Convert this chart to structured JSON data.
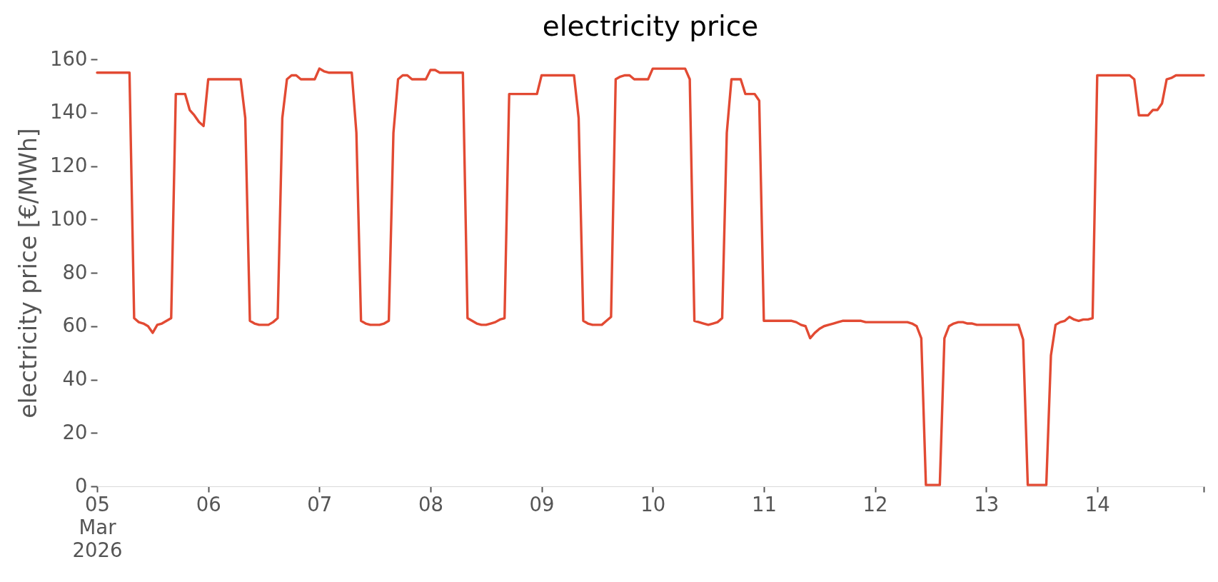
{
  "chart_data": {
    "type": "line",
    "title": "electricity price",
    "ylabel": "electricity price [€/MWh]",
    "x": [
      "2026-03-05T00:00",
      "2026-03-05T07:00",
      "2026-03-05T08:00",
      "2026-03-05T09:00",
      "2026-03-05T10:00",
      "2026-03-05T11:00",
      "2026-03-05T12:00",
      "2026-03-05T13:00",
      "2026-03-05T14:00",
      "2026-03-05T15:00",
      "2026-03-05T16:00",
      "2026-03-05T17:00",
      "2026-03-05T19:00",
      "2026-03-05T20:00",
      "2026-03-05T21:00",
      "2026-03-05T22:00",
      "2026-03-05T23:00",
      "2026-03-06T00:00",
      "2026-03-06T07:00",
      "2026-03-06T08:00",
      "2026-03-06T09:00",
      "2026-03-06T10:00",
      "2026-03-06T11:00",
      "2026-03-06T13:00",
      "2026-03-06T14:00",
      "2026-03-06T15:00",
      "2026-03-06T16:00",
      "2026-03-06T17:00",
      "2026-03-06T18:00",
      "2026-03-06T19:00",
      "2026-03-06T20:00",
      "2026-03-06T23:00",
      "2026-03-07T00:00",
      "2026-03-07T01:00",
      "2026-03-07T02:00",
      "2026-03-07T07:00",
      "2026-03-07T08:00",
      "2026-03-07T09:00",
      "2026-03-07T10:00",
      "2026-03-07T11:00",
      "2026-03-07T13:00",
      "2026-03-07T14:00",
      "2026-03-07T15:00",
      "2026-03-07T16:00",
      "2026-03-07T17:00",
      "2026-03-07T18:00",
      "2026-03-07T19:00",
      "2026-03-07T20:00",
      "2026-03-07T23:00",
      "2026-03-08T00:00",
      "2026-03-08T01:00",
      "2026-03-08T02:00",
      "2026-03-08T07:00",
      "2026-03-08T08:00",
      "2026-03-08T09:00",
      "2026-03-08T10:00",
      "2026-03-08T11:00",
      "2026-03-08T12:00",
      "2026-03-08T13:00",
      "2026-03-08T14:00",
      "2026-03-08T15:00",
      "2026-03-08T16:00",
      "2026-03-08T17:00",
      "2026-03-08T23:00",
      "2026-03-09T00:00",
      "2026-03-09T07:00",
      "2026-03-09T08:00",
      "2026-03-09T09:00",
      "2026-03-09T10:00",
      "2026-03-09T11:00",
      "2026-03-09T13:00",
      "2026-03-09T14:00",
      "2026-03-09T15:00",
      "2026-03-09T16:00",
      "2026-03-09T17:00",
      "2026-03-09T18:00",
      "2026-03-09T19:00",
      "2026-03-09T20:00",
      "2026-03-09T23:00",
      "2026-03-10T00:00",
      "2026-03-10T07:00",
      "2026-03-10T08:00",
      "2026-03-10T09:00",
      "2026-03-10T10:00",
      "2026-03-10T11:00",
      "2026-03-10T12:00",
      "2026-03-10T13:00",
      "2026-03-10T14:00",
      "2026-03-10T15:00",
      "2026-03-10T16:00",
      "2026-03-10T17:00",
      "2026-03-10T19:00",
      "2026-03-10T20:00",
      "2026-03-10T22:00",
      "2026-03-10T23:00",
      "2026-03-11T00:00",
      "2026-03-11T06:00",
      "2026-03-11T07:00",
      "2026-03-11T08:00",
      "2026-03-11T09:00",
      "2026-03-11T10:00",
      "2026-03-11T11:00",
      "2026-03-11T12:00",
      "2026-03-11T13:00",
      "2026-03-11T14:00",
      "2026-03-11T15:00",
      "2026-03-11T16:00",
      "2026-03-11T17:00",
      "2026-03-11T21:00",
      "2026-03-11T22:00",
      "2026-03-12T07:00",
      "2026-03-12T08:00",
      "2026-03-12T09:00",
      "2026-03-12T10:00",
      "2026-03-12T11:00",
      "2026-03-12T14:00",
      "2026-03-12T15:00",
      "2026-03-12T16:00",
      "2026-03-12T17:00",
      "2026-03-12T18:00",
      "2026-03-12T19:00",
      "2026-03-12T20:00",
      "2026-03-12T21:00",
      "2026-03-12T22:00",
      "2026-03-13T07:00",
      "2026-03-13T08:00",
      "2026-03-13T09:00",
      "2026-03-13T13:00",
      "2026-03-13T14:00",
      "2026-03-13T15:00",
      "2026-03-13T16:00",
      "2026-03-13T17:00",
      "2026-03-13T18:00",
      "2026-03-13T19:00",
      "2026-03-13T20:00",
      "2026-03-13T21:00",
      "2026-03-13T22:00",
      "2026-03-13T23:00",
      "2026-03-14T00:00",
      "2026-03-14T07:00",
      "2026-03-14T08:00",
      "2026-03-14T09:00",
      "2026-03-14T11:00",
      "2026-03-14T12:00",
      "2026-03-14T13:00",
      "2026-03-14T14:00",
      "2026-03-14T15:00",
      "2026-03-14T16:00",
      "2026-03-14T17:00",
      "2026-03-14T23:00"
    ],
    "series": [
      {
        "color": "#e24a33",
        "values": [
          155,
          155,
          63,
          61.5,
          61,
          60,
          57.5,
          60.5,
          61,
          62,
          63,
          147,
          147,
          141,
          139,
          136.5,
          135,
          152.5,
          152.5,
          138,
          62,
          61,
          60.5,
          60.5,
          61.5,
          63,
          138,
          152.5,
          154,
          154,
          152.5,
          152.5,
          156.5,
          155.5,
          155,
          155,
          132.5,
          62,
          61,
          60.5,
          60.5,
          61,
          62,
          132.5,
          152.5,
          154,
          154,
          152.5,
          152.5,
          156,
          156,
          155,
          155,
          63,
          62,
          61,
          60.5,
          60.5,
          61,
          61.5,
          62.5,
          63,
          147,
          147,
          154,
          154,
          138,
          62,
          61,
          60.5,
          60.5,
          62,
          63.5,
          152.5,
          153.5,
          154,
          154,
          152.5,
          152.5,
          156.5,
          156.5,
          152.5,
          62,
          61.5,
          61,
          60.5,
          61,
          61.5,
          63,
          132.5,
          152.5,
          152.5,
          147,
          147,
          144.5,
          62,
          62,
          61.5,
          60.5,
          60,
          55.5,
          57.5,
          59,
          60,
          60.5,
          61,
          61.5,
          62,
          62,
          61.5,
          61.5,
          61,
          60,
          55.5,
          0.5,
          0.5,
          55.5,
          60,
          61,
          61.5,
          61.5,
          61,
          61,
          60.5,
          60.5,
          55,
          0.5,
          0.5,
          49,
          60.5,
          61.5,
          62,
          63.5,
          62.5,
          62,
          62.5,
          62.5,
          63,
          154,
          154,
          152.5,
          139,
          139,
          141,
          141,
          143.5,
          152.5,
          153,
          154,
          154
        ]
      }
    ],
    "xlim": [
      "2026-03-05T00:00",
      "2026-03-14T23:00"
    ],
    "xticks": [
      {
        "value": "2026-03-05T00:00",
        "label": "05\nMar\n2026"
      },
      {
        "value": "2026-03-06T00:00",
        "label": "06"
      },
      {
        "value": "2026-03-07T00:00",
        "label": "07"
      },
      {
        "value": "2026-03-08T00:00",
        "label": "08"
      },
      {
        "value": "2026-03-09T00:00",
        "label": "09"
      },
      {
        "value": "2026-03-10T00:00",
        "label": "10"
      },
      {
        "value": "2026-03-11T00:00",
        "label": "11"
      },
      {
        "value": "2026-03-12T00:00",
        "label": "12"
      },
      {
        "value": "2026-03-13T00:00",
        "label": "13"
      },
      {
        "value": "2026-03-14T00:00",
        "label": "14"
      },
      {
        "value": "2026-03-14T23:00",
        "label": null
      }
    ],
    "ylim": [
      0,
      160
    ],
    "yticks": [
      0,
      20,
      40,
      60,
      80,
      100,
      120,
      140,
      160
    ]
  }
}
